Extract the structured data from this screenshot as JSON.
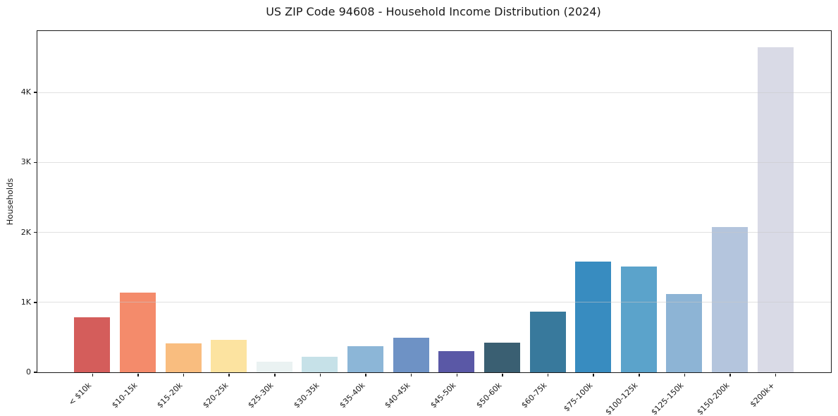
{
  "chart_data": {
    "type": "bar",
    "title": "US ZIP Code 94608 - Household Income Distribution (2024)",
    "xlabel": "",
    "ylabel": "Households",
    "categories": [
      "< $10k",
      "$10-15k",
      "$15-20k",
      "$20-25k",
      "$25-30k",
      "$30-35k",
      "$35-40k",
      "$40-45k",
      "$45-50k",
      "$50-60k",
      "$60-75k",
      "$75-100k",
      "$100-125k",
      "$125-150k",
      "$150-200k",
      "$200k+"
    ],
    "values": [
      785,
      1135,
      405,
      455,
      150,
      215,
      365,
      485,
      295,
      415,
      865,
      1580,
      1510,
      1115,
      2070,
      4640
    ],
    "bar_colors": [
      "#d45d5b",
      "#f48b6b",
      "#f9bd7f",
      "#fce3a0",
      "#eaf2f2",
      "#c6e1e8",
      "#8cb6d7",
      "#6e92c5",
      "#5a58a6",
      "#3a5f72",
      "#38799c",
      "#388cc0",
      "#5ba3cb",
      "#8db4d5",
      "#b4c5dd",
      "#d9dae6"
    ],
    "ylim": [
      0,
      4880
    ],
    "yticks": {
      "values": [
        0,
        1000,
        2000,
        3000,
        4000
      ],
      "labels": [
        "0",
        "1K",
        "2K",
        "3K",
        "4K"
      ]
    },
    "grid": "horizontal",
    "legend": "none"
  }
}
